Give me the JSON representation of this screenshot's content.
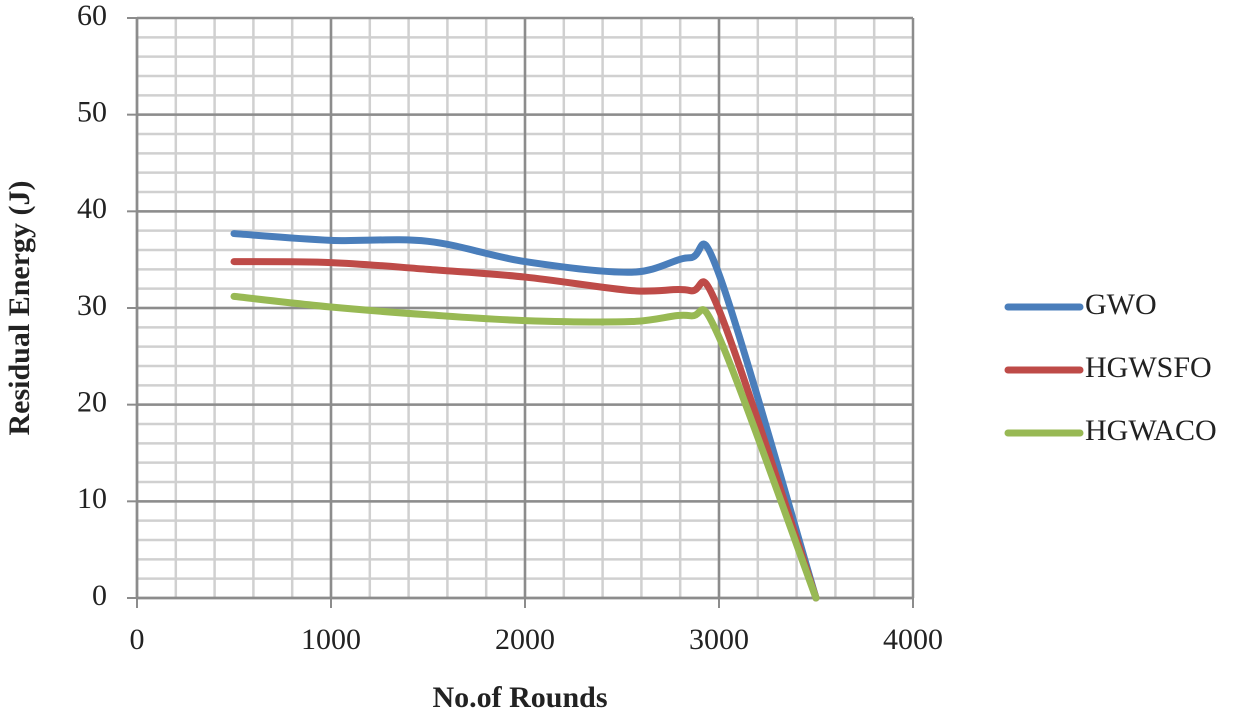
{
  "chart_data": {
    "type": "line",
    "x_label": "No.of Rounds",
    "y_label": "Residual Energy (J)",
    "x": [
      500,
      1000,
      1500,
      2000,
      2550,
      2850,
      3000,
      3500
    ],
    "series": [
      {
        "name": "GWO",
        "color": "#4a7ebb",
        "values": [
          37.7,
          37.0,
          36.9,
          34.8,
          33.7,
          35.2,
          33.5,
          0
        ]
      },
      {
        "name": "HGWSFO",
        "color": "#be4b48",
        "values": [
          34.8,
          34.7,
          34.0,
          33.2,
          31.8,
          31.8,
          29.8,
          0
        ]
      },
      {
        "name": "HGWACO",
        "color": "#98b954",
        "values": [
          31.2,
          30.1,
          29.3,
          28.7,
          28.6,
          29.2,
          27.0,
          0
        ]
      }
    ],
    "xlim": [
      0,
      4000
    ],
    "xticks": [
      0,
      1000,
      2000,
      3000,
      4000
    ],
    "ylim": [
      0,
      60
    ],
    "yticks": [
      0,
      10,
      20,
      30,
      40,
      50,
      60
    ],
    "grid": true,
    "minor_grid": true,
    "legend": "right",
    "smooth": true
  }
}
